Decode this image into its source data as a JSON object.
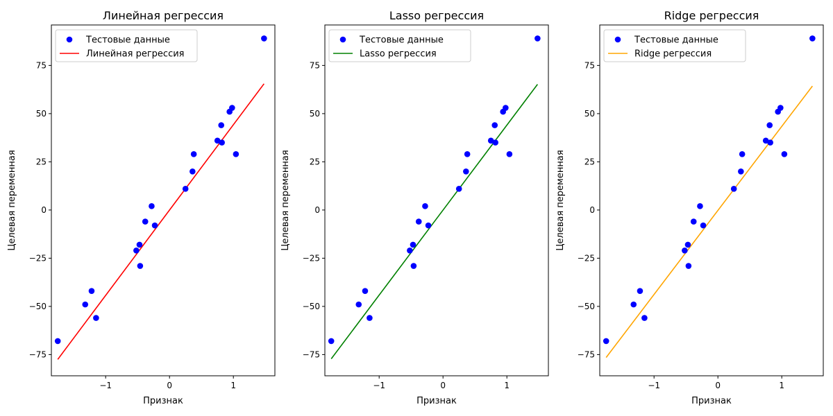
{
  "chart_data": [
    {
      "type": "scatter",
      "title": "Линейная регрессия",
      "xlabel": "Признак",
      "ylabel": "Целевая переменная",
      "xlim": [
        -1.85,
        1.65
      ],
      "ylim": [
        -86,
        96
      ],
      "xticks": [
        -1,
        0,
        1
      ],
      "xtick_labels": [
        "−1",
        "0",
        "1"
      ],
      "yticks": [
        -75,
        -50,
        -25,
        0,
        25,
        50,
        75
      ],
      "ytick_labels": [
        "−75",
        "−50",
        "−25",
        "0",
        "25",
        "50",
        "75"
      ],
      "legend_position": "top-left",
      "grid": false,
      "series": [
        {
          "name": "Тестовые данные",
          "kind": "points",
          "color": "#0000ff",
          "x": [
            -1.75,
            -1.32,
            -1.22,
            -1.15,
            -0.52,
            -0.47,
            -0.46,
            -0.38,
            -0.28,
            -0.23,
            0.25,
            0.36,
            0.38,
            0.75,
            0.81,
            0.82,
            0.94,
            0.98,
            1.04,
            1.48
          ],
          "y": [
            -68,
            -49,
            -42,
            -56,
            -21,
            -18,
            -29,
            -6,
            2,
            -8,
            11,
            20,
            29,
            36,
            44,
            35,
            51,
            53,
            29,
            89
          ]
        },
        {
          "name": "Линейная регрессия",
          "kind": "line",
          "color": "#ff0000",
          "x": [
            -1.75,
            1.48
          ],
          "y": [
            -77.5,
            65.5
          ]
        }
      ]
    },
    {
      "type": "scatter",
      "title": "Lasso регрессия",
      "xlabel": "Признак",
      "ylabel": "Целевая переменная",
      "xlim": [
        -1.85,
        1.65
      ],
      "ylim": [
        -86,
        96
      ],
      "xticks": [
        -1,
        0,
        1
      ],
      "xtick_labels": [
        "−1",
        "0",
        "1"
      ],
      "yticks": [
        -75,
        -50,
        -25,
        0,
        25,
        50,
        75
      ],
      "ytick_labels": [
        "−75",
        "−50",
        "−25",
        "0",
        "25",
        "50",
        "75"
      ],
      "legend_position": "top-left",
      "grid": false,
      "series": [
        {
          "name": "Тестовые данные",
          "kind": "points",
          "color": "#0000ff",
          "x": [
            -1.75,
            -1.32,
            -1.22,
            -1.15,
            -0.52,
            -0.47,
            -0.46,
            -0.38,
            -0.28,
            -0.23,
            0.25,
            0.36,
            0.38,
            0.75,
            0.81,
            0.82,
            0.94,
            0.98,
            1.04,
            1.48
          ],
          "y": [
            -68,
            -49,
            -42,
            -56,
            -21,
            -18,
            -29,
            -6,
            2,
            -8,
            11,
            20,
            29,
            36,
            44,
            35,
            51,
            53,
            29,
            89
          ]
        },
        {
          "name": "Lasso регрессия",
          "kind": "line",
          "color": "#008000",
          "x": [
            -1.75,
            1.48
          ],
          "y": [
            -77.2,
            65.2
          ]
        }
      ]
    },
    {
      "type": "scatter",
      "title": "Ridge регрессия",
      "xlabel": "Признак",
      "ylabel": "Целевая переменная",
      "xlim": [
        -1.85,
        1.65
      ],
      "ylim": [
        -86,
        96
      ],
      "xticks": [
        -1,
        0,
        1
      ],
      "xtick_labels": [
        "−1",
        "0",
        "1"
      ],
      "yticks": [
        -75,
        -50,
        -25,
        0,
        25,
        50,
        75
      ],
      "ytick_labels": [
        "−75",
        "−50",
        "−25",
        "0",
        "25",
        "50",
        "75"
      ],
      "legend_position": "top-left",
      "grid": false,
      "series": [
        {
          "name": "Тестовые данные",
          "kind": "points",
          "color": "#0000ff",
          "x": [
            -1.75,
            -1.32,
            -1.22,
            -1.15,
            -0.52,
            -0.47,
            -0.46,
            -0.38,
            -0.28,
            -0.23,
            0.25,
            0.36,
            0.38,
            0.75,
            0.81,
            0.82,
            0.94,
            0.98,
            1.04,
            1.48
          ],
          "y": [
            -68,
            -49,
            -42,
            -56,
            -21,
            -18,
            -29,
            -6,
            2,
            -8,
            11,
            20,
            29,
            36,
            44,
            35,
            51,
            53,
            29,
            89
          ]
        },
        {
          "name": "Ridge регрессия",
          "kind": "line",
          "color": "#ffa500",
          "x": [
            -1.75,
            1.48
          ],
          "y": [
            -76.5,
            64.3
          ]
        }
      ]
    }
  ]
}
